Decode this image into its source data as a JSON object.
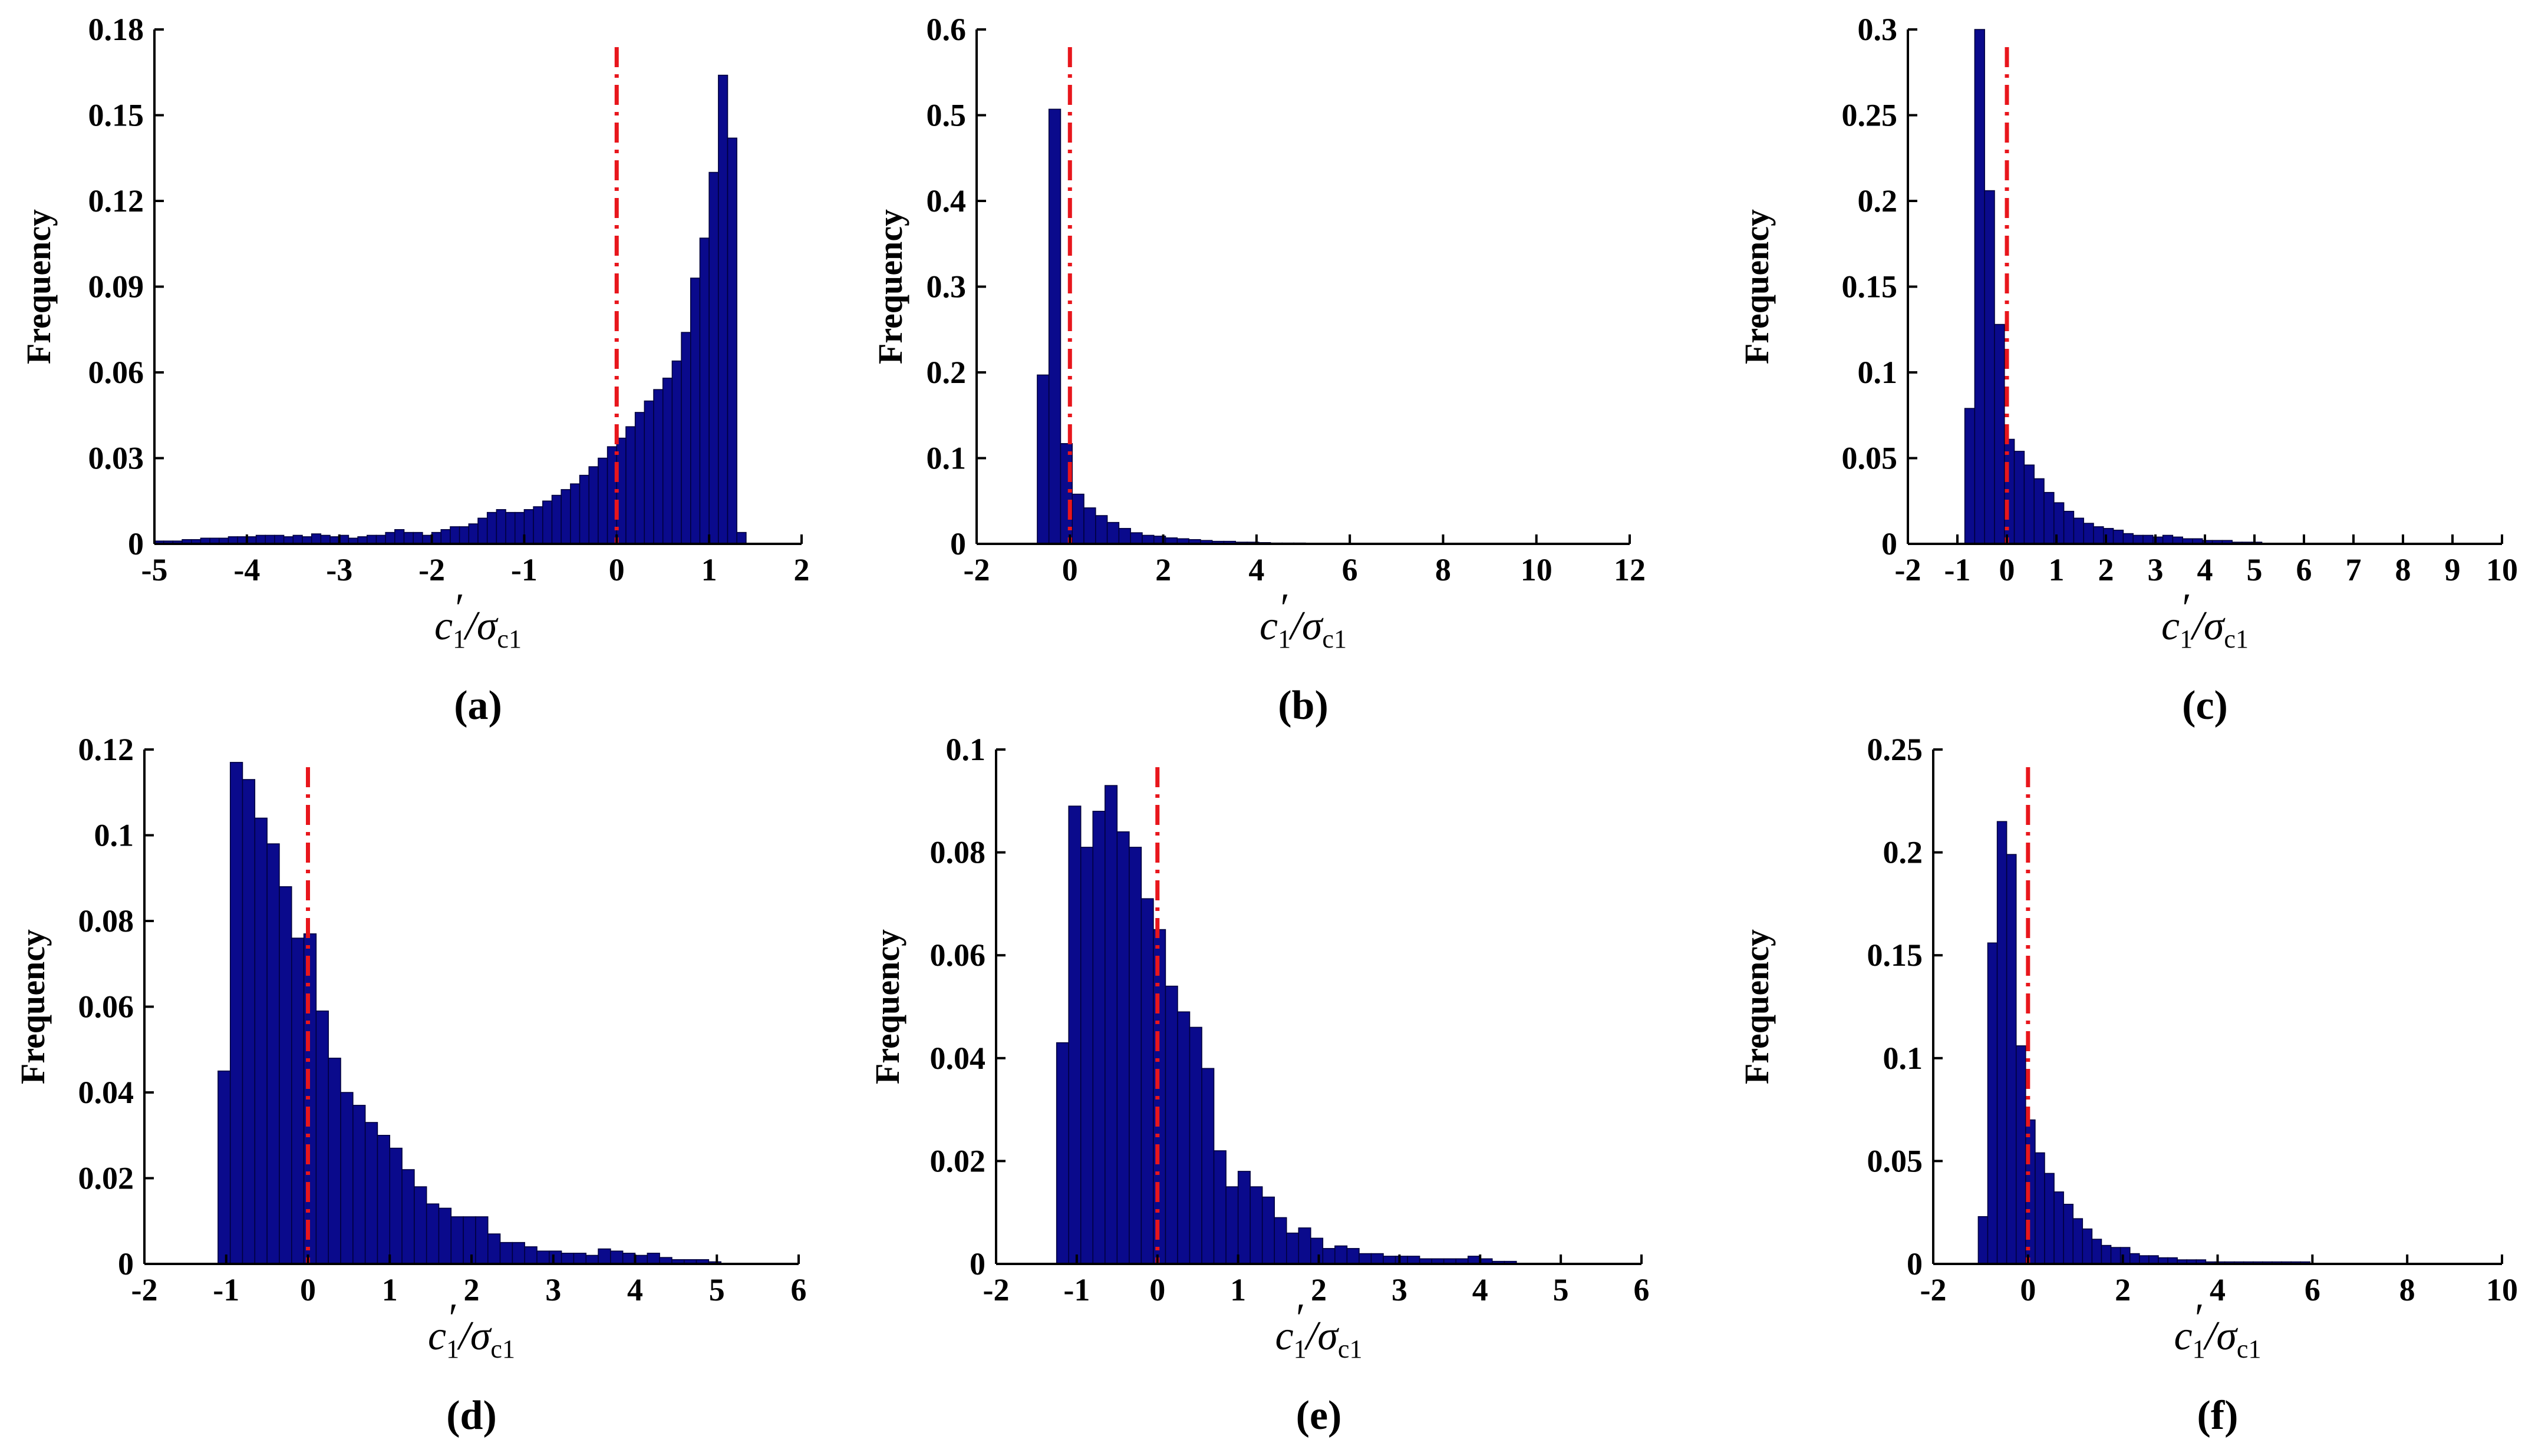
{
  "bar_color": "#0a0a8c",
  "ref_line_color": "#e8161c",
  "chart_data": [
    {
      "id": "a",
      "type": "bar",
      "caption": "(a)",
      "xlabel_main": "c",
      "xlabel_sub": "1",
      "xlabel_prime": "′",
      "xlabel_sigma": "/σ",
      "xlabel_sigma_sub": "c1",
      "ylabel": "Frequency",
      "xlim": [
        -5,
        2
      ],
      "ylim": [
        0,
        0.18
      ],
      "ref_x": 0,
      "xticks": [
        "-5",
        "-4",
        "-3",
        "-2",
        "-1",
        "0",
        "1",
        "2"
      ],
      "yticks": [
        "0",
        "0.03",
        "0.06",
        "0.09",
        "0.12",
        "0.15",
        "0.18"
      ],
      "bin_start": -5,
      "bin_width": 0.1,
      "values": [
        0.001,
        0.001,
        0.001,
        0.0015,
        0.0015,
        0.002,
        0.002,
        0.002,
        0.0025,
        0.0025,
        0.0025,
        0.003,
        0.003,
        0.003,
        0.0025,
        0.003,
        0.0025,
        0.0035,
        0.003,
        0.0025,
        0.003,
        0.002,
        0.0025,
        0.003,
        0.003,
        0.004,
        0.005,
        0.004,
        0.004,
        0.003,
        0.004,
        0.005,
        0.006,
        0.006,
        0.007,
        0.009,
        0.011,
        0.012,
        0.011,
        0.011,
        0.012,
        0.013,
        0.015,
        0.017,
        0.019,
        0.021,
        0.024,
        0.027,
        0.03,
        0.034,
        0.037,
        0.041,
        0.046,
        0.05,
        0.054,
        0.058,
        0.064,
        0.074,
        0.093,
        0.107,
        0.13,
        0.164,
        0.142,
        0.004
      ]
    },
    {
      "id": "b",
      "type": "bar",
      "caption": "(b)",
      "xlabel_main": "c",
      "xlabel_sub": "1",
      "xlabel_prime": "′",
      "xlabel_sigma": "/σ",
      "xlabel_sigma_sub": "c1",
      "ylabel": "Frequency",
      "xlim": [
        -2,
        12
      ],
      "ylim": [
        0,
        0.6
      ],
      "ref_x": 0,
      "xticks": [
        "-2",
        "0",
        "2",
        "4",
        "6",
        "8",
        "10",
        "12"
      ],
      "yticks": [
        "0",
        "0.1",
        "0.2",
        "0.3",
        "0.4",
        "0.5",
        "0.6"
      ],
      "bin_start": -0.7,
      "bin_width": 0.25,
      "values": [
        0.197,
        0.507,
        0.117,
        0.058,
        0.042,
        0.033,
        0.025,
        0.018,
        0.013,
        0.01,
        0.009,
        0.007,
        0.006,
        0.005,
        0.004,
        0.003,
        0.003,
        0.002,
        0.002,
        0.0015,
        0.001,
        0.001,
        0.001
      ]
    },
    {
      "id": "c",
      "type": "bar",
      "caption": "(c)",
      "xlabel_main": "c",
      "xlabel_sub": "1",
      "xlabel_prime": "′",
      "xlabel_sigma": "/σ",
      "xlabel_sigma_sub": "c1",
      "ylabel": "Frequency",
      "xlim": [
        -2,
        10
      ],
      "ylim": [
        0,
        0.3
      ],
      "ref_x": 0,
      "xticks": [
        "-2",
        "-1",
        "0",
        "1",
        "2",
        "3",
        "4",
        "5",
        "6",
        "7",
        "8",
        "9",
        "10"
      ],
      "yticks": [
        "0",
        "0.05",
        "0.1",
        "0.15",
        "0.2",
        "0.25",
        "0.3"
      ],
      "bin_start": -0.85,
      "bin_width": 0.2,
      "values": [
        0.079,
        0.3,
        0.206,
        0.128,
        0.061,
        0.054,
        0.046,
        0.038,
        0.03,
        0.024,
        0.019,
        0.015,
        0.012,
        0.01,
        0.009,
        0.008,
        0.006,
        0.005,
        0.005,
        0.004,
        0.005,
        0.004,
        0.003,
        0.003,
        0.002,
        0.002,
        0.002,
        0.001,
        0.001,
        0.001
      ]
    },
    {
      "id": "d",
      "type": "bar",
      "caption": "(d)",
      "xlabel_main": "c",
      "xlabel_sub": "1",
      "xlabel_prime": "′",
      "xlabel_sigma": "/σ",
      "xlabel_sigma_sub": "c1",
      "ylabel": "Frequency",
      "xlim": [
        -2,
        6
      ],
      "ylim": [
        0,
        0.12
      ],
      "ref_x": 0,
      "xticks": [
        "-2",
        "-1",
        "0",
        "1",
        "2",
        "3",
        "4",
        "5",
        "6"
      ],
      "yticks": [
        "0",
        "0.02",
        "0.04",
        "0.06",
        "0.08",
        "0.1",
        "0.12"
      ],
      "bin_start": -1.1,
      "bin_width": 0.15,
      "values": [
        0.045,
        0.117,
        0.113,
        0.104,
        0.098,
        0.088,
        0.076,
        0.077,
        0.059,
        0.048,
        0.04,
        0.037,
        0.033,
        0.03,
        0.027,
        0.022,
        0.018,
        0.014,
        0.013,
        0.011,
        0.011,
        0.011,
        0.007,
        0.005,
        0.005,
        0.004,
        0.003,
        0.003,
        0.0025,
        0.0025,
        0.002,
        0.0035,
        0.003,
        0.0025,
        0.002,
        0.0025,
        0.0015,
        0.001,
        0.001,
        0.001,
        0.0005
      ]
    },
    {
      "id": "e",
      "type": "bar",
      "caption": "(e)",
      "xlabel_main": "c",
      "xlabel_sub": "1",
      "xlabel_prime": "′",
      "xlabel_sigma": "/σ",
      "xlabel_sigma_sub": "c1",
      "ylabel": "Frequency",
      "xlim": [
        -2,
        6
      ],
      "ylim": [
        0,
        0.1
      ],
      "ref_x": 0,
      "xticks": [
        "-2",
        "-1",
        "0",
        "1",
        "2",
        "3",
        "4",
        "5",
        "6"
      ],
      "yticks": [
        "0",
        "0.02",
        "0.04",
        "0.06",
        "0.08",
        "0.1"
      ],
      "bin_start": -1.25,
      "bin_width": 0.15,
      "values": [
        0.043,
        0.089,
        0.081,
        0.088,
        0.093,
        0.084,
        0.081,
        0.071,
        0.065,
        0.054,
        0.049,
        0.046,
        0.038,
        0.022,
        0.015,
        0.018,
        0.015,
        0.013,
        0.009,
        0.006,
        0.007,
        0.005,
        0.003,
        0.0035,
        0.003,
        0.002,
        0.002,
        0.0015,
        0.0015,
        0.0015,
        0.001,
        0.001,
        0.001,
        0.001,
        0.0015,
        0.001,
        0.0005,
        0.0005
      ]
    },
    {
      "id": "f",
      "type": "bar",
      "caption": "(f)",
      "xlabel_main": "c",
      "xlabel_sub": "1",
      "xlabel_prime": "′",
      "xlabel_sigma": "/σ",
      "xlabel_sigma_sub": "c1",
      "ylabel": "Frequency",
      "xlim": [
        -2,
        10
      ],
      "ylim": [
        0,
        0.25
      ],
      "ref_x": 0,
      "xticks": [
        "-2",
        "0",
        "2",
        "4",
        "6",
        "8",
        "10"
      ],
      "yticks": [
        "0",
        "0.05",
        "0.1",
        "0.15",
        "0.2",
        "0.25"
      ],
      "bin_start": -1.05,
      "bin_width": 0.2,
      "values": [
        0.023,
        0.156,
        0.215,
        0.199,
        0.106,
        0.07,
        0.054,
        0.044,
        0.035,
        0.029,
        0.022,
        0.017,
        0.012,
        0.009,
        0.008,
        0.008,
        0.005,
        0.004,
        0.004,
        0.003,
        0.003,
        0.002,
        0.002,
        0.002,
        0.001,
        0.001,
        0.001,
        0.001,
        0.001,
        0.001,
        0.001,
        0.001,
        0.001,
        0.001,
        0.001
      ]
    }
  ]
}
